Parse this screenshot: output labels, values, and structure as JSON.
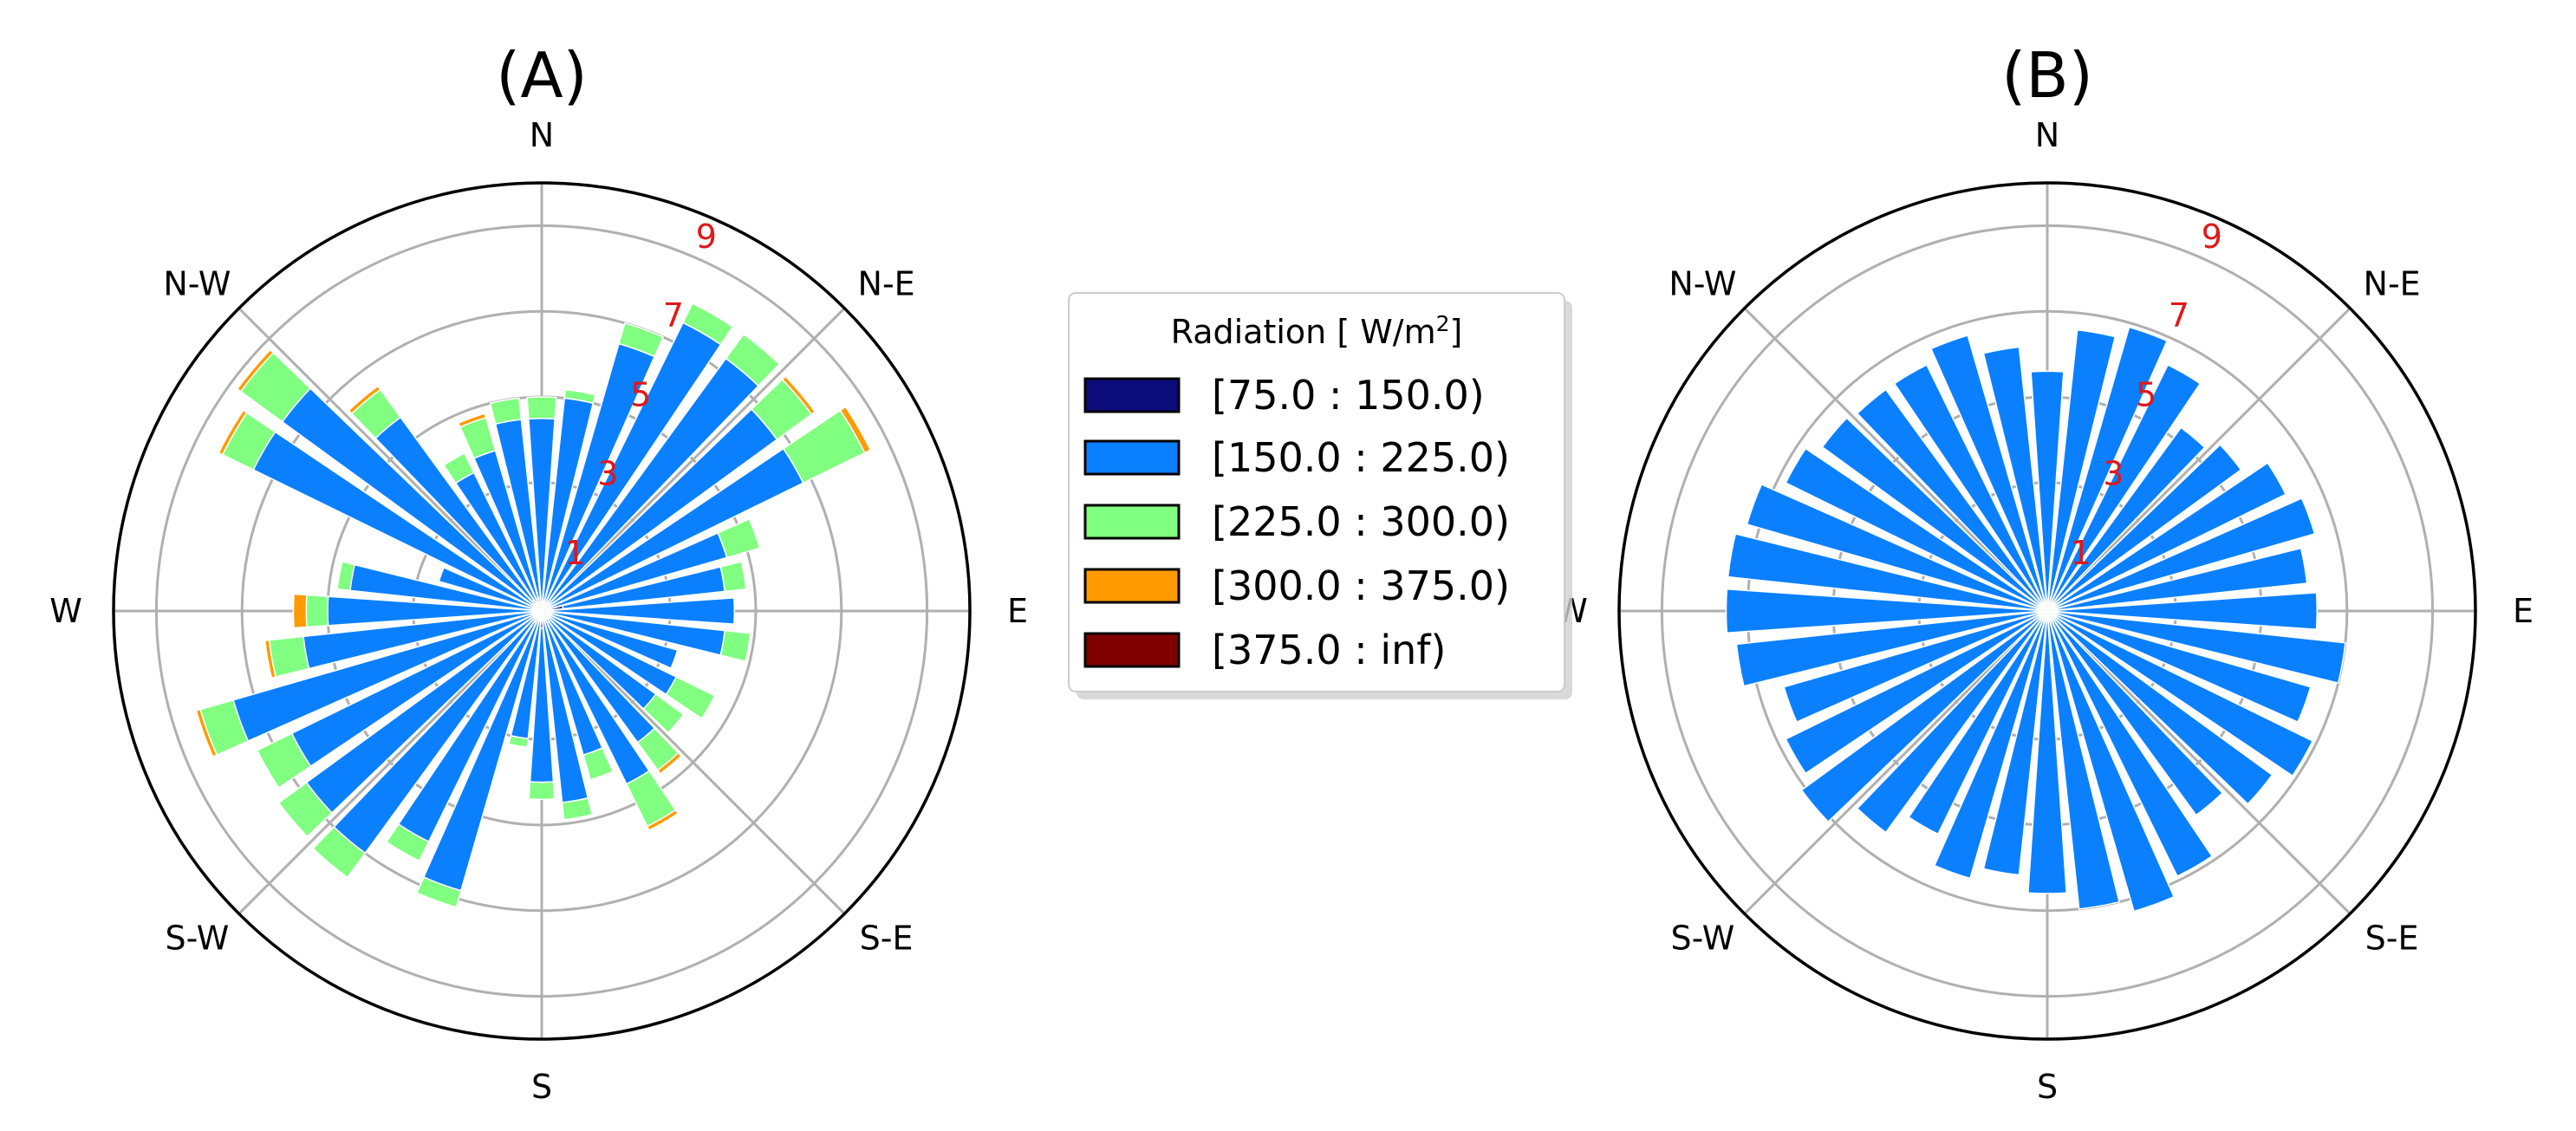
{
  "legend": {
    "title_text": "Radiation",
    "title_unit_open": " [ W/m",
    "title_unit_sup": "2",
    "title_unit_close": "]",
    "entries": [
      {
        "label": "[75.0 : 150.0)",
        "color": "#0b0b7c"
      },
      {
        "label": "[150.0 : 225.0)",
        "color": "#0a80ff"
      },
      {
        "label": "[225.0 : 300.0)",
        "color": "#80ff80"
      },
      {
        "label": "[300.0 : 375.0)",
        "color": "#ff9a00"
      },
      {
        "label": "[375.0 : inf)",
        "color": "#800000"
      }
    ]
  },
  "chart_data": [
    {
      "type": "windrose",
      "title": "(A)",
      "direction_labels": [
        "E",
        "N-E",
        "N",
        "N-W",
        "W",
        "S-W",
        "S",
        "S-E"
      ],
      "ring_values": [
        1,
        3,
        5,
        7,
        9
      ],
      "ring_labels": [
        "1",
        "3",
        "5",
        "7",
        "9"
      ],
      "rmax": 10,
      "bin_count": 36,
      "bin_width_deg": 10,
      "grid": true,
      "sectors": [
        {
          "direction_deg": 0,
          "stack": [
            0,
            4.5,
            0.5,
            0,
            0
          ]
        },
        {
          "direction_deg": 10,
          "stack": [
            0,
            5.0,
            0.2,
            0,
            0
          ]
        },
        {
          "direction_deg": 20,
          "stack": [
            0,
            6.5,
            0.5,
            0,
            0
          ]
        },
        {
          "direction_deg": 30,
          "stack": [
            0,
            7.5,
            0.5,
            0,
            0
          ]
        },
        {
          "direction_deg": 40,
          "stack": [
            0,
            7.3,
            0.7,
            0,
            0
          ]
        },
        {
          "direction_deg": 50,
          "stack": [
            0,
            6.8,
            1.0,
            0.1,
            0
          ]
        },
        {
          "direction_deg": 60,
          "stack": [
            0,
            6.8,
            1.6,
            0.15,
            0
          ]
        },
        {
          "direction_deg": 70,
          "stack": [
            0,
            4.5,
            0.8,
            0,
            0
          ]
        },
        {
          "direction_deg": 80,
          "stack": [
            0.5,
            3.8,
            0.5,
            0,
            0
          ]
        },
        {
          "direction_deg": 90,
          "stack": [
            0,
            4.5,
            0,
            0,
            0
          ]
        },
        {
          "direction_deg": 100,
          "stack": [
            0,
            4.3,
            0.6,
            0,
            0
          ]
        },
        {
          "direction_deg": 110,
          "stack": [
            0,
            3.3,
            0,
            0,
            0
          ]
        },
        {
          "direction_deg": 120,
          "stack": [
            0,
            3.5,
            1.0,
            0,
            0
          ]
        },
        {
          "direction_deg": 130,
          "stack": [
            0,
            3.3,
            0.8,
            0,
            0
          ]
        },
        {
          "direction_deg": 140,
          "stack": [
            0,
            3.8,
            0.8,
            0.1,
            0
          ]
        },
        {
          "direction_deg": 150,
          "stack": [
            0.3,
            4.2,
            1.1,
            0.1,
            0
          ]
        },
        {
          "direction_deg": 160,
          "stack": [
            0,
            3.5,
            0.6,
            0,
            0
          ]
        },
        {
          "direction_deg": 170,
          "stack": [
            0,
            4.5,
            0.4,
            0,
            0
          ]
        },
        {
          "direction_deg": 180,
          "stack": [
            0.4,
            3.6,
            0.4,
            0,
            0
          ]
        },
        {
          "direction_deg": 190,
          "stack": [
            0,
            3.0,
            0.2,
            0,
            0
          ]
        },
        {
          "direction_deg": 200,
          "stack": [
            0,
            6.8,
            0.4,
            0,
            0
          ]
        },
        {
          "direction_deg": 210,
          "stack": [
            0.3,
            5.7,
            0.5,
            0,
            0
          ]
        },
        {
          "direction_deg": 220,
          "stack": [
            0,
            7.0,
            0.7,
            0,
            0
          ]
        },
        {
          "direction_deg": 230,
          "stack": [
            0,
            6.8,
            0.8,
            0,
            0
          ]
        },
        {
          "direction_deg": 240,
          "stack": [
            0,
            6.5,
            0.9,
            0,
            0
          ]
        },
        {
          "direction_deg": 250,
          "stack": [
            0,
            7.5,
            0.8,
            0.1,
            0
          ]
        },
        {
          "direction_deg": 260,
          "stack": [
            0,
            5.6,
            0.8,
            0.1,
            0
          ]
        },
        {
          "direction_deg": 270,
          "stack": [
            0,
            5.0,
            0.5,
            0.3,
            0
          ]
        },
        {
          "direction_deg": 280,
          "stack": [
            0,
            4.5,
            0.3,
            0,
            0
          ]
        },
        {
          "direction_deg": 290,
          "stack": [
            0,
            2.5,
            0,
            0,
            0
          ]
        },
        {
          "direction_deg": 300,
          "stack": [
            0,
            7.5,
            0.8,
            0.1,
            0
          ]
        },
        {
          "direction_deg": 310,
          "stack": [
            0,
            7.5,
            1.2,
            0.1,
            0
          ]
        },
        {
          "direction_deg": 320,
          "stack": [
            0.3,
            5.3,
            0.8,
            0.1,
            0
          ]
        },
        {
          "direction_deg": 330,
          "stack": [
            0,
            3.6,
            0.5,
            0,
            0
          ]
        },
        {
          "direction_deg": 340,
          "stack": [
            0.3,
            3.6,
            0.8,
            0.1,
            0
          ]
        },
        {
          "direction_deg": 350,
          "stack": [
            0.3,
            4.2,
            0.5,
            0,
            0
          ]
        }
      ]
    },
    {
      "type": "windrose",
      "title": "(B)",
      "direction_labels": [
        "E",
        "N-E",
        "N",
        "N-W",
        "W",
        "S-W",
        "S",
        "S-E"
      ],
      "ring_values": [
        1,
        3,
        5,
        7,
        9
      ],
      "ring_labels": [
        "1",
        "3",
        "5",
        "7",
        "9"
      ],
      "rmax": 10,
      "bin_count": 36,
      "bin_width_deg": 10,
      "grid": true,
      "sectors": [
        {
          "direction_deg": 0,
          "stack": [
            0,
            5.6,
            0,
            0,
            0
          ]
        },
        {
          "direction_deg": 10,
          "stack": [
            0,
            6.6,
            0,
            0,
            0
          ]
        },
        {
          "direction_deg": 20,
          "stack": [
            0,
            6.9,
            0,
            0,
            0
          ]
        },
        {
          "direction_deg": 30,
          "stack": [
            0,
            6.4,
            0,
            0,
            0
          ]
        },
        {
          "direction_deg": 40,
          "stack": [
            0,
            5.3,
            0,
            0,
            0
          ]
        },
        {
          "direction_deg": 50,
          "stack": [
            0,
            5.6,
            0,
            0,
            0
          ]
        },
        {
          "direction_deg": 60,
          "stack": [
            0,
            6.2,
            0,
            0,
            0
          ]
        },
        {
          "direction_deg": 70,
          "stack": [
            0,
            6.5,
            0,
            0,
            0
          ]
        },
        {
          "direction_deg": 80,
          "stack": [
            0,
            6.1,
            0,
            0,
            0
          ]
        },
        {
          "direction_deg": 90,
          "stack": [
            0,
            6.3,
            0,
            0,
            0
          ]
        },
        {
          "direction_deg": 100,
          "stack": [
            0,
            7.0,
            0,
            0,
            0
          ]
        },
        {
          "direction_deg": 110,
          "stack": [
            0,
            6.4,
            0,
            0,
            0
          ]
        },
        {
          "direction_deg": 120,
          "stack": [
            0,
            6.9,
            0,
            0,
            0
          ]
        },
        {
          "direction_deg": 130,
          "stack": [
            0,
            6.5,
            0,
            0,
            0
          ]
        },
        {
          "direction_deg": 140,
          "stack": [
            0,
            5.9,
            0,
            0,
            0
          ]
        },
        {
          "direction_deg": 150,
          "stack": [
            0,
            6.9,
            0,
            0,
            0
          ]
        },
        {
          "direction_deg": 160,
          "stack": [
            0,
            7.3,
            0,
            0,
            0
          ]
        },
        {
          "direction_deg": 170,
          "stack": [
            0,
            7.0,
            0,
            0,
            0
          ]
        },
        {
          "direction_deg": 180,
          "stack": [
            0,
            6.6,
            0,
            0,
            0
          ]
        },
        {
          "direction_deg": 190,
          "stack": [
            0,
            6.2,
            0,
            0,
            0
          ]
        },
        {
          "direction_deg": 200,
          "stack": [
            0,
            6.5,
            0,
            0,
            0
          ]
        },
        {
          "direction_deg": 210,
          "stack": [
            0,
            5.8,
            0,
            0,
            0
          ]
        },
        {
          "direction_deg": 220,
          "stack": [
            0,
            6.4,
            0,
            0,
            0
          ]
        },
        {
          "direction_deg": 230,
          "stack": [
            0,
            7.1,
            0,
            0,
            0
          ]
        },
        {
          "direction_deg": 240,
          "stack": [
            0,
            6.8,
            0,
            0,
            0
          ]
        },
        {
          "direction_deg": 250,
          "stack": [
            0,
            6.4,
            0,
            0,
            0
          ]
        },
        {
          "direction_deg": 260,
          "stack": [
            0,
            7.3,
            0,
            0,
            0
          ]
        },
        {
          "direction_deg": 270,
          "stack": [
            0,
            7.5,
            0,
            0,
            0
          ]
        },
        {
          "direction_deg": 280,
          "stack": [
            0,
            7.5,
            0,
            0,
            0
          ]
        },
        {
          "direction_deg": 290,
          "stack": [
            0,
            7.3,
            0,
            0,
            0
          ]
        },
        {
          "direction_deg": 300,
          "stack": [
            0,
            6.8,
            0,
            0,
            0
          ]
        },
        {
          "direction_deg": 310,
          "stack": [
            0,
            6.5,
            0,
            0,
            0
          ]
        },
        {
          "direction_deg": 320,
          "stack": [
            0,
            6.4,
            0,
            0,
            0
          ]
        },
        {
          "direction_deg": 330,
          "stack": [
            0,
            6.4,
            0,
            0,
            0
          ]
        },
        {
          "direction_deg": 340,
          "stack": [
            0,
            6.7,
            0,
            0,
            0
          ]
        },
        {
          "direction_deg": 350,
          "stack": [
            0,
            6.2,
            0,
            0,
            0
          ]
        }
      ]
    }
  ]
}
